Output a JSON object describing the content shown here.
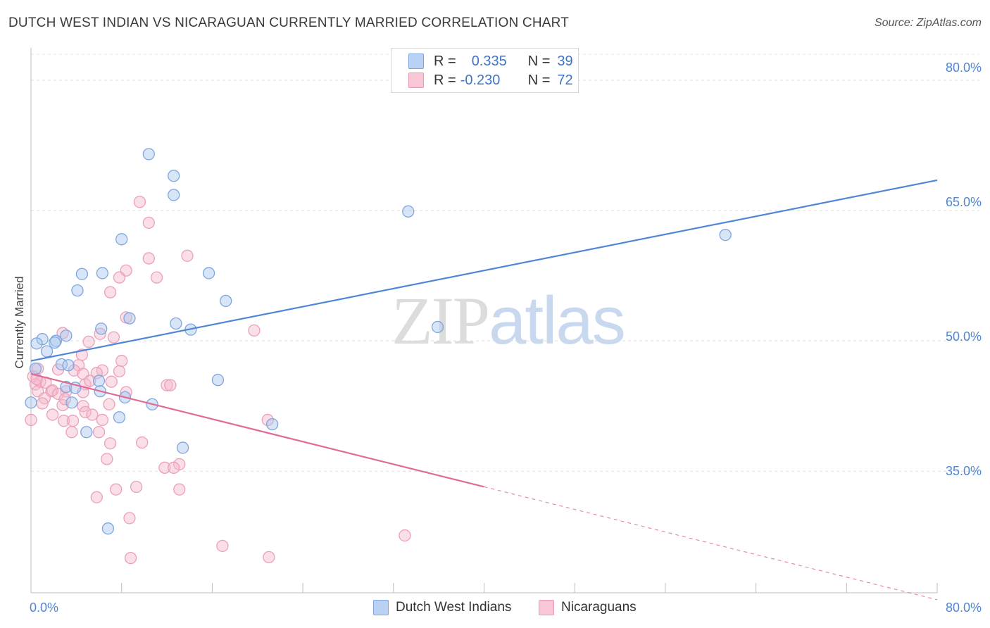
{
  "chart_data": {
    "type": "scatter",
    "title": "DUTCH WEST INDIAN VS NICARAGUAN CURRENTLY MARRIED CORRELATION CHART",
    "source": "Source: ZipAtlas.com",
    "xlabel": "",
    "ylabel": "Currently Married",
    "xlim": [
      0,
      80
    ],
    "ylim": [
      21,
      83
    ],
    "x_tick_labels": [
      "0.0%",
      "80.0%"
    ],
    "y_ticks": [
      35,
      50,
      65,
      80
    ],
    "y_tick_labels": [
      "35.0%",
      "50.0%",
      "65.0%",
      "80.0%"
    ],
    "grid": true,
    "legend": {
      "position": "top-center",
      "rows": [
        {
          "r_label": "R =",
          "r_value": "0.335",
          "n_label": "N =",
          "n_value": "39"
        },
        {
          "r_label": "R =",
          "r_value": "-0.230",
          "n_label": "N =",
          "n_value": "72"
        }
      ]
    },
    "watermark": {
      "zip": "ZIP",
      "atlas": "atlas"
    },
    "series": [
      {
        "name": "Dutch West Indians",
        "color": "#4f86d6",
        "fill": "#a9c6ee",
        "trend": {
          "x0": 0,
          "y0": 47.7,
          "x1": 80,
          "y1": 68.5,
          "dashed_from": null
        },
        "points": [
          [
            10.4,
            71.5
          ],
          [
            12.6,
            69.0
          ],
          [
            12.6,
            66.8
          ],
          [
            33.3,
            64.9
          ],
          [
            61.3,
            62.2
          ],
          [
            8.0,
            61.7
          ],
          [
            4.5,
            57.7
          ],
          [
            6.3,
            57.8
          ],
          [
            15.7,
            57.8
          ],
          [
            4.1,
            55.8
          ],
          [
            17.2,
            54.6
          ],
          [
            8.7,
            52.6
          ],
          [
            12.8,
            52.0
          ],
          [
            35.9,
            51.6
          ],
          [
            14.1,
            51.3
          ],
          [
            6.2,
            51.4
          ],
          [
            1.0,
            50.2
          ],
          [
            2.2,
            50.0
          ],
          [
            3.1,
            50.6
          ],
          [
            0.5,
            49.7
          ],
          [
            2.1,
            49.8
          ],
          [
            1.4,
            48.8
          ],
          [
            2.7,
            47.3
          ],
          [
            3.3,
            47.2
          ],
          [
            0.4,
            46.8
          ],
          [
            6.0,
            45.4
          ],
          [
            16.5,
            45.5
          ],
          [
            3.1,
            44.7
          ],
          [
            3.9,
            44.6
          ],
          [
            6.1,
            44.2
          ],
          [
            8.3,
            43.5
          ],
          [
            0.0,
            42.9
          ],
          [
            3.6,
            42.9
          ],
          [
            10.7,
            42.7
          ],
          [
            7.8,
            41.2
          ],
          [
            21.3,
            40.4
          ],
          [
            4.9,
            39.5
          ],
          [
            13.4,
            37.7
          ],
          [
            6.8,
            28.4
          ]
        ]
      },
      {
        "name": "Nicaraguans",
        "color": "#e06b97",
        "fill": "#f5b7cb",
        "trend": {
          "x0": 0,
          "y0": 46.2,
          "x1": 80,
          "y1": 20.2,
          "dashed_from": 40
        }
      }
    ]
  }
}
